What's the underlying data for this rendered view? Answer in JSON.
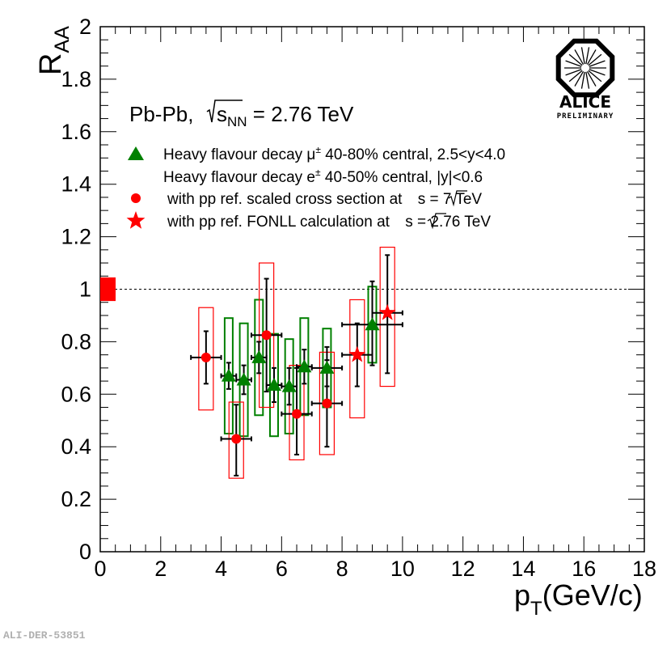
{
  "chart_data": {
    "type": "scatter",
    "title": "",
    "xlabel": "p_T (GeV/c)",
    "ylabel": "R_AA",
    "xlim": [
      0,
      18
    ],
    "ylim": [
      0,
      2
    ],
    "grid": false,
    "reference_line": 1,
    "x_ticks": [
      "0",
      "2",
      "4",
      "6",
      "8",
      "10",
      "12",
      "14",
      "16",
      "18"
    ],
    "y_ticks": [
      "0",
      "0.2",
      "0.4",
      "0.6",
      "0.8",
      "1",
      "1.2",
      "1.4",
      "1.6",
      "1.8",
      "2"
    ],
    "normalization_box": {
      "ylo": 0.955,
      "yhi": 1.045
    },
    "series": [
      {
        "name": "Heavy flavour decay μ± 40-80% central, 2.5<y<4.0",
        "marker": "triangle",
        "color": "#008000",
        "points": [
          {
            "x": 4.25,
            "y": 0.67,
            "xerr": 0.25,
            "stat": [
              0.62,
              0.72
            ],
            "sys": [
              0.45,
              0.89
            ]
          },
          {
            "x": 4.75,
            "y": 0.655,
            "xerr": 0.25,
            "stat": [
              0.6,
              0.71
            ],
            "sys": [
              0.44,
              0.87
            ]
          },
          {
            "x": 5.25,
            "y": 0.74,
            "xerr": 0.25,
            "stat": [
              0.68,
              0.8
            ],
            "sys": [
              0.52,
              0.96
            ]
          },
          {
            "x": 5.75,
            "y": 0.635,
            "xerr": 0.25,
            "stat": [
              0.57,
              0.7
            ],
            "sys": [
              0.44,
              0.83
            ]
          },
          {
            "x": 6.25,
            "y": 0.63,
            "xerr": 0.25,
            "stat": [
              0.56,
              0.7
            ],
            "sys": [
              0.45,
              0.81
            ]
          },
          {
            "x": 6.75,
            "y": 0.705,
            "xerr": 0.25,
            "stat": [
              0.64,
              0.77
            ],
            "sys": [
              0.52,
              0.89
            ]
          },
          {
            "x": 7.5,
            "y": 0.7,
            "xerr": 0.5,
            "stat": [
              0.63,
              0.78
            ],
            "sys": [
              0.55,
              0.85
            ]
          },
          {
            "x": 9.0,
            "y": 0.865,
            "xerr": 1.0,
            "stat": [
              0.71,
              1.03
            ],
            "sys": [
              0.72,
              1.01
            ]
          }
        ]
      },
      {
        "name": "with pp ref. scaled cross section at √s = 7 TeV",
        "marker": "circle",
        "color": "#ff0000",
        "points": [
          {
            "x": 3.5,
            "y": 0.74,
            "xerr": 0.5,
            "stat": [
              0.64,
              0.84
            ],
            "sys": [
              0.54,
              0.93
            ]
          },
          {
            "x": 4.5,
            "y": 0.43,
            "xerr": 0.5,
            "stat": [
              0.29,
              0.56
            ],
            "sys": [
              0.28,
              0.57
            ]
          },
          {
            "x": 5.5,
            "y": 0.825,
            "xerr": 0.5,
            "stat": [
              0.61,
              1.04
            ],
            "sys": [
              0.55,
              1.1
            ]
          },
          {
            "x": 6.5,
            "y": 0.525,
            "xerr": 0.5,
            "stat": [
              0.37,
              0.7
            ],
            "sys": [
              0.35,
              0.71
            ]
          },
          {
            "x": 7.5,
            "y": 0.565,
            "xerr": 0.5,
            "stat": [
              0.4,
              0.73
            ],
            "sys": [
              0.37,
              0.76
            ]
          }
        ]
      },
      {
        "name": "with pp ref. FONLL calculation at √s = 2.76 TeV",
        "marker": "star",
        "color": "#ff0000",
        "points": [
          {
            "x": 8.5,
            "y": 0.75,
            "xerr": 0.5,
            "stat": [
              0.63,
              0.87
            ],
            "sys": [
              0.51,
              0.96
            ]
          },
          {
            "x": 9.5,
            "y": 0.91,
            "xerr": 0.5,
            "stat": [
              0.68,
              1.13
            ],
            "sys": [
              0.63,
              1.16
            ]
          }
        ]
      }
    ]
  },
  "header": {
    "system_prefix": "Pb-Pb,",
    "sqrt_var": "s",
    "sqrt_sub": "NN",
    "energy": " = 2.76 TeV"
  },
  "legend": {
    "triangle_label_pre": "Heavy flavour decay μ",
    "triangle_label_sup": "±",
    "triangle_label_post": " 40-80% central, 2.5<y<4.0",
    "electron_label_pre": "Heavy flavour decay e",
    "electron_label_sup": "±",
    "electron_label_post": " 40-50% central, |y|<0.6",
    "circle_label_pre": "with pp ref. scaled cross section at ",
    "circle_label_var": "s",
    "circle_label_post": " = 7 TeV",
    "star_label_pre": "with pp ref. FONLL calculation at ",
    "star_label_var": "s",
    "star_label_post": " = 2.76 TeV"
  },
  "axes": {
    "y_main": "R",
    "y_sub": "AA",
    "x_main": "p",
    "x_sub": "T",
    "x_unit": "(GeV/c)"
  },
  "logo": {
    "name": "ALICE",
    "tag": "PRELIMINARY"
  },
  "footer": {
    "id": "ALI-DER-53851"
  },
  "colors": {
    "muon": "#008000",
    "electron": "#ff0000",
    "errorbar": "#000000"
  }
}
